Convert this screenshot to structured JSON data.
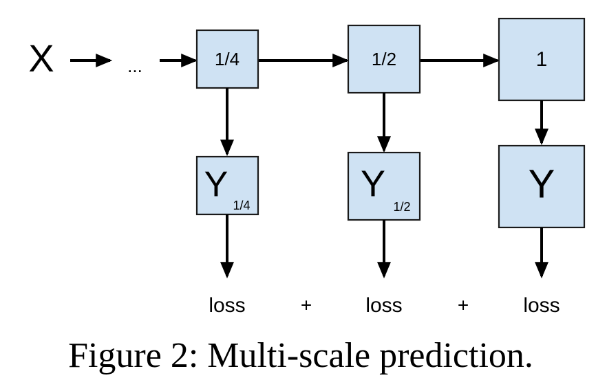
{
  "input": {
    "label": "X",
    "ellipsis": "..."
  },
  "scales": [
    {
      "label": "1/4",
      "output_main": "Y",
      "output_sub": "1/4",
      "loss": "loss"
    },
    {
      "label": "1/2",
      "output_main": "Y",
      "output_sub": "1/2",
      "loss": "loss"
    },
    {
      "label": "1",
      "output_main": "Y",
      "output_sub": "",
      "loss": "loss"
    }
  ],
  "plus_signs": [
    "+",
    "+"
  ],
  "caption": "Figure 2: Multi-scale prediction."
}
